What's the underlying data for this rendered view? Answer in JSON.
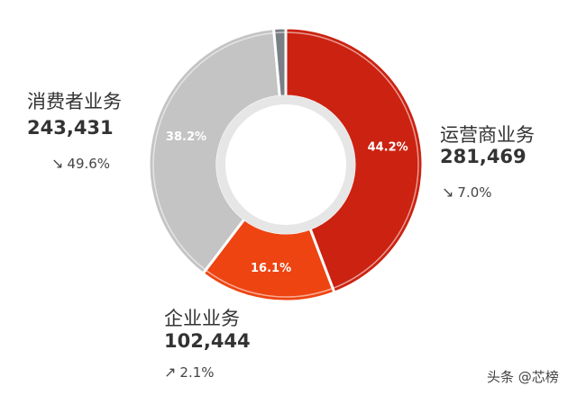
{
  "chart_data": {
    "type": "pie",
    "variant": "donut",
    "slices": [
      {
        "name": "运营商业务",
        "value": 281469,
        "percent_label": "44.2%",
        "change": "7.0%",
        "direction": "down",
        "color": "#cc2211",
        "pct_color": "#ffffff"
      },
      {
        "name": "企业业务",
        "value": 102444,
        "percent_label": "16.1%",
        "change": "2.1%",
        "direction": "up",
        "color": "#ee4411",
        "pct_color": "#ffffff"
      },
      {
        "name": "消费者业务",
        "value": 243431,
        "percent_label": "38.2%",
        "change": "49.6%",
        "direction": "down",
        "color": "#c4c4c4",
        "pct_color": "#ffffff"
      },
      {
        "name": "",
        "value": 9000,
        "percent_label": "",
        "change": "",
        "direction": "",
        "color": "#7a7f85",
        "pct_color": "#ffffff"
      }
    ]
  },
  "labels": {
    "carrier": {
      "name": "运营商业务",
      "value": "281,469",
      "arrow": "↘",
      "change": "7.0%"
    },
    "enterprise": {
      "name": "企业业务",
      "value": "102,444",
      "arrow": "↗",
      "change": "2.1%"
    },
    "consumer": {
      "name": "消费者业务",
      "value": "243,431",
      "arrow": "↘",
      "change": "49.6%"
    }
  },
  "watermark": "头条 @芯榜"
}
